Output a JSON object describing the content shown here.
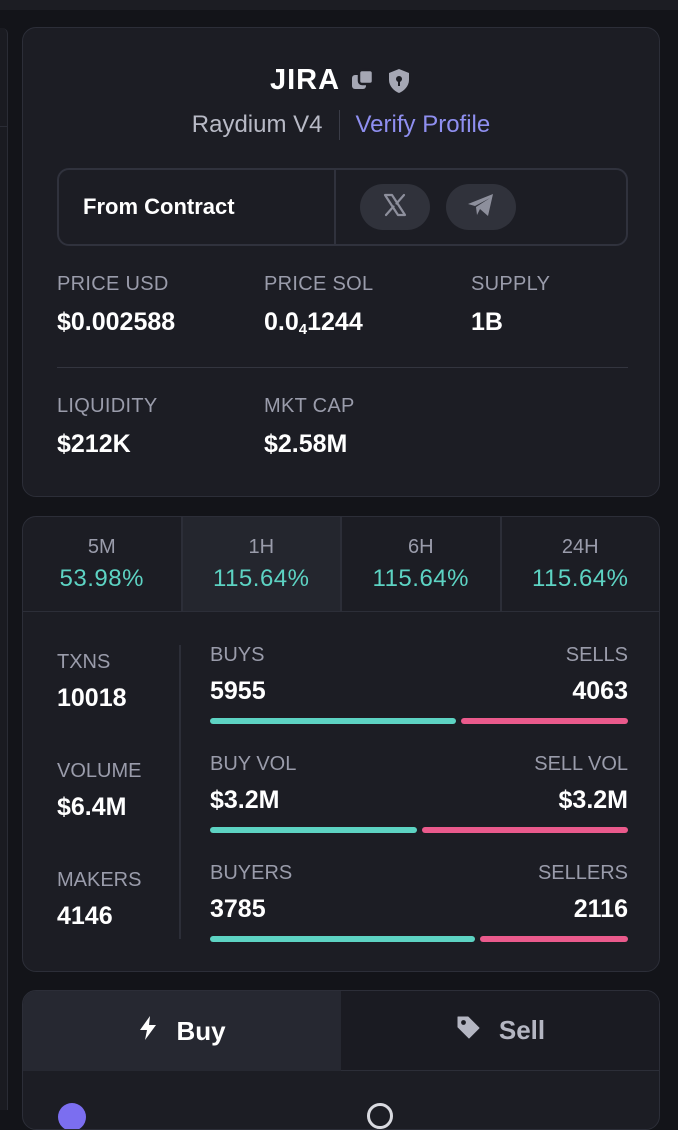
{
  "token": {
    "name": "JIRA",
    "dex": "Raydium V4",
    "verify_label": "Verify Profile"
  },
  "contract": {
    "label": "From Contract",
    "socials": [
      "x-icon",
      "telegram-icon"
    ]
  },
  "info": {
    "price_usd": {
      "label": "PRICE USD",
      "value": "$0.002588"
    },
    "price_sol": {
      "label": "PRICE SOL",
      "prefix": "0.0",
      "sub": "4",
      "suffix": "1244"
    },
    "supply": {
      "label": "SUPPLY",
      "value": "1B"
    },
    "liquidity": {
      "label": "LIQUIDITY",
      "value": "$212K"
    },
    "mkt_cap": {
      "label": "MKT CAP",
      "value": "$2.58M"
    }
  },
  "timeframes": [
    {
      "label": "5M",
      "value": "53.98%"
    },
    {
      "label": "1H",
      "value": "115.64%"
    },
    {
      "label": "6H",
      "value": "115.64%"
    },
    {
      "label": "24H",
      "value": "115.64%"
    }
  ],
  "active_timeframe": "1H",
  "activity": {
    "txns": {
      "label": "TXNS",
      "value": "10018"
    },
    "volume": {
      "label": "VOLUME",
      "value": "$6.4M"
    },
    "makers": {
      "label": "MAKERS",
      "value": "4146"
    },
    "buys": {
      "label": "BUYS",
      "value": "5955",
      "sell_label": "SELLS",
      "sell_value": "4063",
      "buy_fraction": 0.595
    },
    "vol": {
      "label": "BUY VOL",
      "value": "$3.2M",
      "sell_label": "SELL VOL",
      "sell_value": "$3.2M",
      "buy_fraction": 0.5
    },
    "buyers": {
      "label": "BUYERS",
      "value": "3785",
      "sell_label": "SELLERS",
      "sell_value": "2116",
      "buy_fraction": 0.641
    }
  },
  "trade": {
    "buy_label": "Buy",
    "sell_label": "Sell",
    "active": "Buy"
  },
  "colors": {
    "positive": "#5dd3c3",
    "negative": "#ea5a8c",
    "link": "#8f8ff0"
  }
}
